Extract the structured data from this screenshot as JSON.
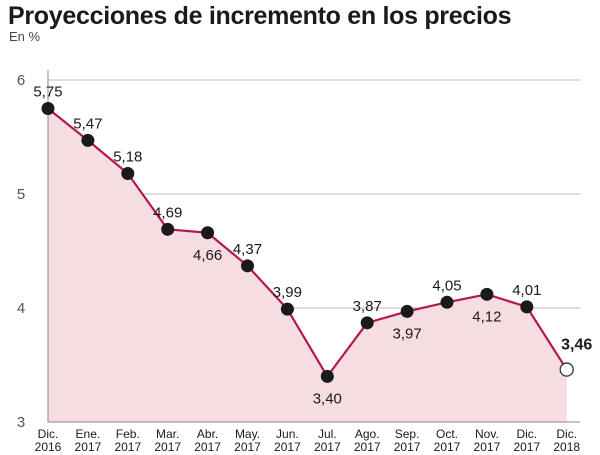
{
  "chart_data": {
    "type": "line",
    "title": "Proyecciones de incremento en los precios",
    "subtitle": "En %",
    "xlabel": "",
    "ylabel": "",
    "ylim": [
      3,
      6
    ],
    "yticks": [
      3,
      4,
      5,
      6
    ],
    "grid": true,
    "categories": [
      [
        "Dic.",
        "2016"
      ],
      [
        "Ene.",
        "2017"
      ],
      [
        "Feb.",
        "2017"
      ],
      [
        "Mar.",
        "2017"
      ],
      [
        "Abr.",
        "2017"
      ],
      [
        "May.",
        "2017"
      ],
      [
        "Jun.",
        "2017"
      ],
      [
        "Jul.",
        "2017"
      ],
      [
        "Ago.",
        "2017"
      ],
      [
        "Sep.",
        "2017"
      ],
      [
        "Oct.",
        "2017"
      ],
      [
        "Nov.",
        "2017"
      ],
      [
        "Dic.",
        "2017"
      ],
      [
        "Dic.",
        "2018"
      ]
    ],
    "values": [
      5.75,
      5.47,
      5.18,
      4.69,
      4.66,
      4.37,
      3.99,
      3.4,
      3.87,
      3.97,
      4.05,
      4.12,
      4.01,
      3.46
    ],
    "labels": [
      "5,75",
      "5,47",
      "5,18",
      "4,69",
      "4,66",
      "4,37",
      "3,99",
      "3,40",
      "3,87",
      "3,97",
      "4,05",
      "4,12",
      "4,01",
      "3,46"
    ],
    "label_positions": [
      "above",
      "above",
      "above",
      "above",
      "below",
      "above",
      "above",
      "below",
      "above",
      "below",
      "above",
      "below",
      "above",
      "above-right"
    ],
    "highlight_last": true,
    "colors": {
      "line": "#b5174f",
      "area": "#f6dde1",
      "marker": "#1a1a1a",
      "grid": "#bbbbbb",
      "axis": "#888888"
    }
  }
}
